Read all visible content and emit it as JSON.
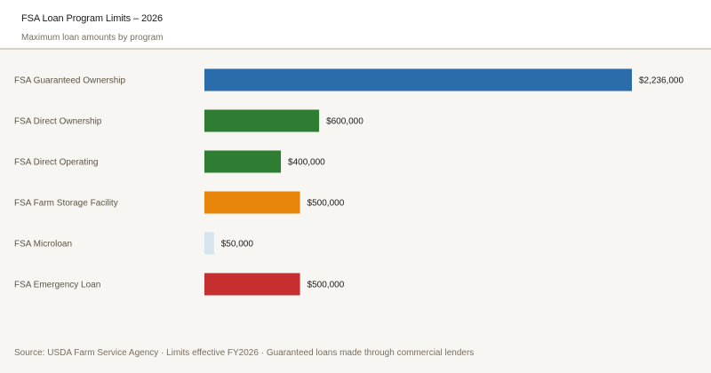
{
  "header": {
    "title": "FSA Loan Program Limits – 2026",
    "subtitle": "Maximum loan amounts by program"
  },
  "chart_data": {
    "type": "bar",
    "orientation": "horizontal",
    "categories": [
      "FSA Guaranteed Ownership",
      "FSA Direct Ownership",
      "FSA Direct Operating",
      "FSA Farm Storage Facility",
      "FSA Microloan",
      "FSA Emergency Loan"
    ],
    "values": [
      2236000,
      600000,
      400000,
      500000,
      50000,
      500000
    ],
    "value_labels": [
      "$2,236,000",
      "$600,000",
      "$400,000",
      "$500,000",
      "$50,000",
      "$500,000"
    ],
    "colors": [
      "#2b6cab",
      "#2e7d32",
      "#2e7d32",
      "#e8860b",
      "#d6e4f0",
      "#c62f2f"
    ],
    "xlim": [
      0,
      2236000
    ],
    "grid": false,
    "title": "FSA Loan Program Limits – 2026",
    "subtitle": "Maximum loan amounts by program"
  },
  "footer": {
    "source": "Source: USDA Farm Service Agency · Limits effective FY2026 · Guaranteed loans made through commercial lenders"
  }
}
